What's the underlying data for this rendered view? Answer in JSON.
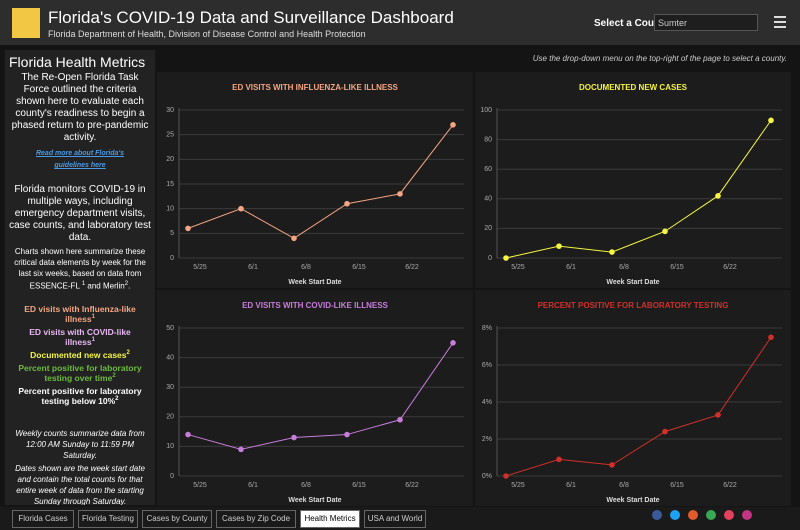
{
  "header": {
    "title": "Florida's COVID-19 Data and Surveillance Dashboard",
    "subtitle": "Florida Department of Health, Division of Disease Control and Health Protection",
    "select_label": "Select a County",
    "select_value": "Sumter"
  },
  "instruction": "Use the drop-down menu on the top-right of the page to select a county.",
  "sidebar": {
    "title": "Florida Health Metrics",
    "intro": "The Re-Open Florida Task Force outlined the criteria shown here to evaluate each county's readiness to begin a phased return to pre-pandemic activity.",
    "link": "Read more about Florida's guidelines here",
    "monitor": "Florida monitors COVID-19 in multiple ways, including emergency department visits, case counts, and laboratory test data.",
    "summary_parts": [
      "Charts shown here summarize these critical data elements by week for the last six weeks, based on data from ESSENCE-FL ",
      "1",
      " and Merlin",
      "2",
      "."
    ],
    "criteria": [
      {
        "text": "ED visits with Influenza-like illness",
        "note": "1",
        "color": "#f4a582"
      },
      {
        "text": "ED visits with COVID-like illness",
        "note": "1",
        "color": "#e9b8f5"
      },
      {
        "text": "Documented new cases",
        "note": "2",
        "color": "#f5f542"
      },
      {
        "text": "Percent positive for laboratory testing over time",
        "note": "2",
        "color": "#6dbb3c"
      },
      {
        "text": "Percent positive for laboratory testing below 10%",
        "note": "2",
        "color": "#ffffff"
      }
    ],
    "weekly": "Weekly counts summarize data from 12:00 AM Sunday to 11:59 PM Saturday.",
    "dates": "Dates shown are the week start date and contain the total counts for that entire week of data from the starting Sunday through Saturday."
  },
  "tabs": [
    "Florida Cases",
    "Florida Testing",
    "Cases by County",
    "Cases by Zip Code",
    "Health Metrics",
    "USA and World"
  ],
  "chart_data": [
    {
      "type": "line",
      "title": "ED VISITS WITH INFLUENZA-LIKE ILLNESS",
      "x_label": "Week Start Date",
      "color": "#f4a582",
      "categories": [
        "5/25",
        "6/1",
        "6/8",
        "6/15",
        "6/22",
        null
      ],
      "values": [
        6,
        10,
        4,
        11,
        13,
        27
      ],
      "ylim": [
        0,
        30
      ],
      "yticks": [
        0,
        5,
        10,
        15,
        20,
        25,
        30
      ],
      "grid": true
    },
    {
      "type": "line",
      "title": "DOCUMENTED NEW CASES",
      "x_label": "Week Start Date",
      "color": "#f5f542",
      "categories": [
        "5/25",
        "6/1",
        "6/8",
        "6/15",
        "6/22",
        null
      ],
      "values": [
        0,
        8,
        4,
        18,
        42,
        93
      ],
      "ylim": [
        0,
        100
      ],
      "yticks": [
        0,
        20,
        40,
        60,
        80,
        100
      ],
      "grid": true
    },
    {
      "type": "line",
      "title": "ED VISITS WITH COVID-LIKE ILLNESS",
      "x_label": "Week Start Date",
      "color": "#c77ddb",
      "categories": [
        "5/25",
        "6/1",
        "6/8",
        "6/15",
        "6/22",
        null
      ],
      "values": [
        14,
        9,
        13,
        14,
        19,
        45
      ],
      "ylim": [
        0,
        50
      ],
      "yticks": [
        0,
        10,
        20,
        30,
        40,
        50
      ],
      "grid": true
    },
    {
      "type": "line",
      "title": "PERCENT POSITIVE FOR LABORATORY TESTING",
      "x_label": "Week Start Date",
      "color": "#d0302a",
      "categories": [
        "5/25",
        "6/1",
        "6/8",
        "6/15",
        "6/22",
        null
      ],
      "values": [
        0,
        0.9,
        0.6,
        2.4,
        3.3,
        7.5
      ],
      "ylim": [
        0,
        8
      ],
      "yticks": [
        {
          "value": 0,
          "label": "0%"
        },
        {
          "value": 2,
          "label": "2%"
        },
        {
          "value": 4,
          "label": "4%"
        },
        {
          "value": 6,
          "label": "6%"
        },
        {
          "value": 8,
          "label": "8%"
        }
      ],
      "grid": true
    }
  ]
}
